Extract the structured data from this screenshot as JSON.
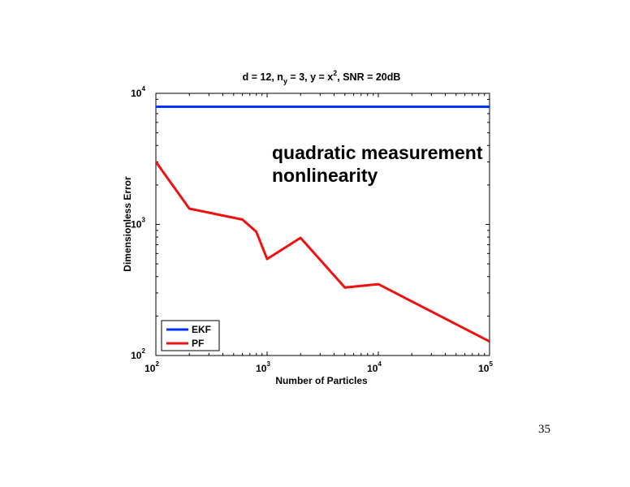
{
  "chart_data": {
    "type": "line",
    "title": {
      "p1": "d = 12, n",
      "sub": "y",
      "p2": " = 3, y = x",
      "sup": "2",
      "p3": ", SNR = 20dB"
    },
    "xlabel": "Number of Particles",
    "ylabel": "Dimensionless Error",
    "xscale": "log",
    "yscale": "log",
    "xlim": [
      100,
      100000
    ],
    "ylim": [
      100,
      10000
    ],
    "xticks": [
      {
        "base": "10",
        "exp": "2",
        "value": 100
      },
      {
        "base": "10",
        "exp": "3",
        "value": 1000
      },
      {
        "base": "10",
        "exp": "4",
        "value": 10000
      },
      {
        "base": "10",
        "exp": "5",
        "value": 100000
      }
    ],
    "yticks": [
      {
        "base": "10",
        "exp": "2",
        "value": 100
      },
      {
        "base": "10",
        "exp": "3",
        "value": 1000
      },
      {
        "base": "10",
        "exp": "4",
        "value": 10000
      }
    ],
    "legend_position": "bottom-left",
    "annotation": [
      "quadratic measurement",
      "nonlinearity"
    ],
    "series": [
      {
        "name": "EKF",
        "color": "#0033ff",
        "x": [
          100,
          100000
        ],
        "y": [
          7900,
          7900
        ]
      },
      {
        "name": "PF",
        "color": "#ee1111",
        "x": [
          100,
          200,
          600,
          800,
          1000,
          2000,
          5000,
          10000,
          100000
        ],
        "y": [
          3000,
          1320,
          1090,
          880,
          545,
          790,
          330,
          350,
          128
        ]
      }
    ]
  },
  "page_number": "35"
}
